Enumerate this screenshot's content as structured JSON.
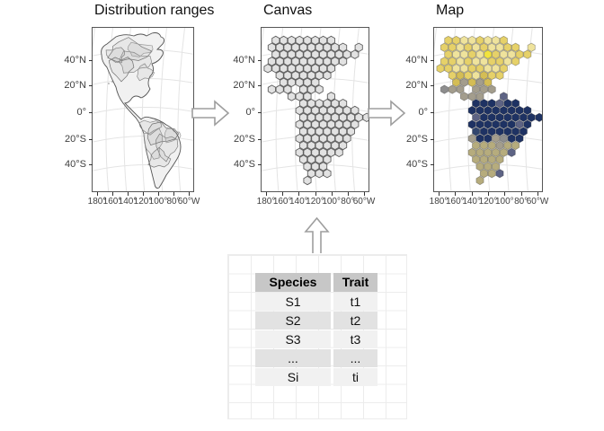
{
  "panels": [
    {
      "title": "Distribution ranges"
    },
    {
      "title": "Canvas"
    },
    {
      "title": "Map"
    }
  ],
  "axes": {
    "y_ticks": [
      "40°N",
      "20°N",
      "0°",
      "20°S",
      "40°S"
    ],
    "x_ticks": [
      "180°",
      "160°",
      "140°",
      "120°",
      "100°",
      "80°",
      "60°W"
    ]
  },
  "table": {
    "headers": [
      "Species",
      "Trait"
    ],
    "rows": [
      [
        "S1",
        "t1"
      ],
      [
        "S2",
        "t2"
      ],
      [
        "S3",
        "t3"
      ],
      [
        "...",
        "..."
      ],
      [
        "Si",
        "ti"
      ]
    ]
  },
  "hex_map": {
    "rows": [
      ".aabbabba....",
      "aabababbaa.b.",
      ".abbabYabbaa.",
      "aababbaaba...",
      "aabbaabba....",
      ".acabcaa.....",
      "..cgcgc......",
      "hgg.ggg......",
      "...ggg..s....",
      "....nnnsnn...",
      "....nnnnnnnn.",
      "....snnnnnnnn",
      "....nnnnnnsn.",
      "....mnnnnnn..",
      "....gnnghnn..",
      "....kkkgkk...",
      "....kkkkks...",
      "....kkkk.....",
      ".....kkk.....",
      ".....kks.....",
      ".....k......."
    ],
    "palette": {
      "Y": "#f2e33e",
      "a": "#e6d169",
      "b": "#efe39c",
      "c": "#d4bd55",
      "g": "#a39d8d",
      "h": "#8d8d8d",
      "n": "#1e3263",
      "m": "#32466e",
      "s": "#5d6384",
      "k": "#b6ac7d"
    },
    "canvas_fill": "#e2e2e2",
    "canvas_stroke": "#5f5f5f",
    "map_stroke": "rgba(30,30,30,0.35)"
  },
  "colors": {
    "panel_border": "#565656",
    "graticule": "#e4e4e4",
    "continent_fill": "#f1f1f1",
    "continent_stroke": "#555555",
    "arrow_stroke": "#9e9e9e",
    "arrow_fill": "#ffffff"
  }
}
